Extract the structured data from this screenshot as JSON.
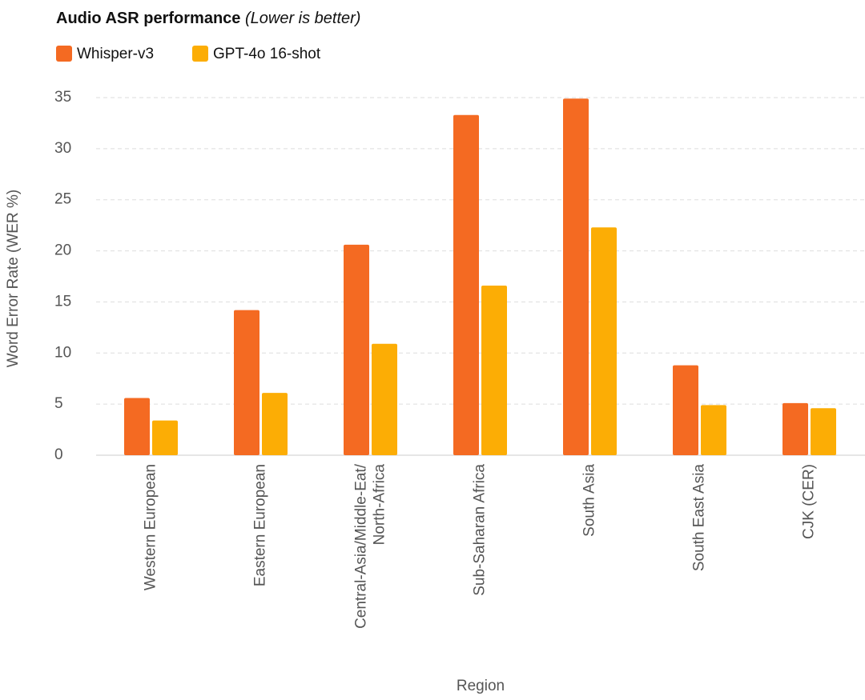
{
  "chart_data": {
    "type": "bar",
    "title": "Audio ASR performance",
    "subtitle": "(Lower is better)",
    "x_label": "Region",
    "y_label": "Word Error Rate (WER %)",
    "categories": [
      "Western European",
      "Eastern European",
      "Central-Asia/Middle-Eat/North-Africa",
      "Sub-Saharan Africa",
      "South Asia",
      "South East Asia",
      "CJK (CER)"
    ],
    "series": [
      {
        "name": "Whisper-v3",
        "color": "#f46a22",
        "values": [
          5.6,
          14.2,
          20.6,
          33.3,
          34.9,
          8.8,
          5.1
        ]
      },
      {
        "name": "GPT-4o 16-shot",
        "color": "#fcad05",
        "values": [
          3.4,
          6.1,
          10.9,
          16.6,
          22.3,
          4.9,
          4.6
        ]
      }
    ],
    "ylim": [
      0,
      35
    ],
    "yticks": [
      0,
      5,
      10,
      15,
      20,
      25,
      30,
      35
    ],
    "grid": true
  }
}
